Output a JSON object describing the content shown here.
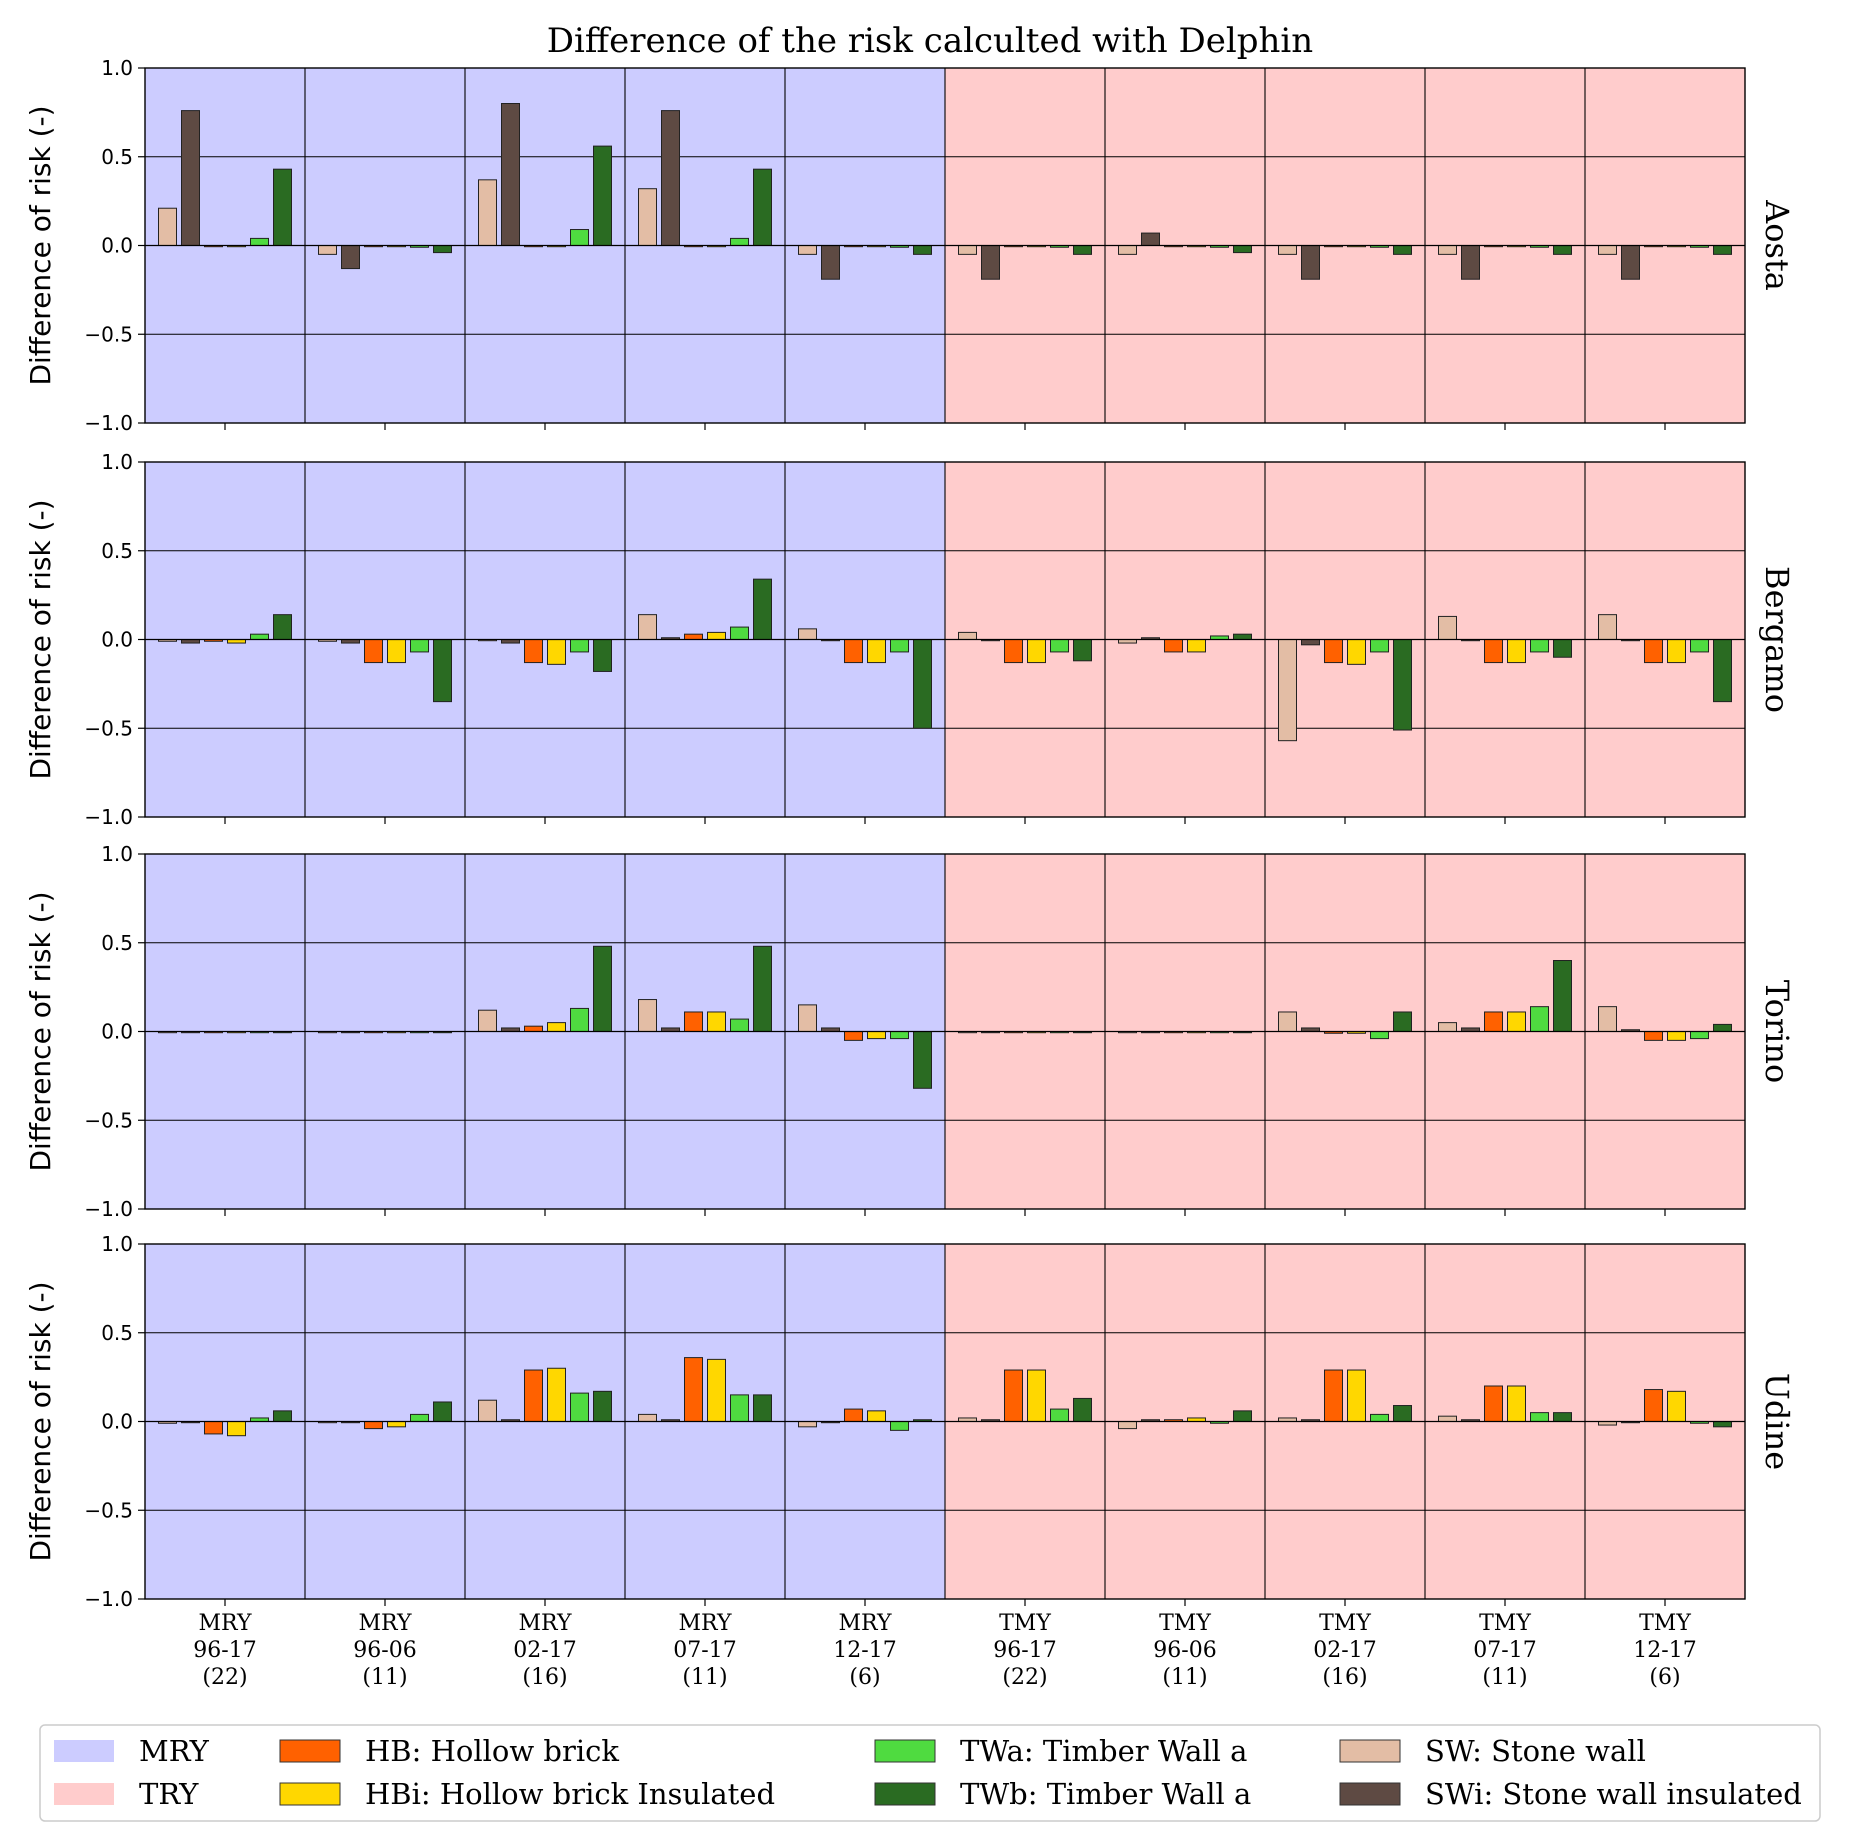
{
  "chart_data": {
    "type": "bar",
    "title": "Difference of the risk calculted with Delphin",
    "ylabel": "Difference of risk (-)",
    "ylim": [
      -1.0,
      1.0
    ],
    "yticks": [
      "−1.0",
      "−0.5",
      "0.0",
      "0.5",
      "1.0"
    ],
    "grid": true,
    "legend_position": "bottom",
    "categories": [
      {
        "type": "MRY",
        "years": "96-17",
        "count": "(22)"
      },
      {
        "type": "MRY",
        "years": "96-06",
        "count": "(11)"
      },
      {
        "type": "MRY",
        "years": "02-17",
        "count": "(16)"
      },
      {
        "type": "MRY",
        "years": "07-17",
        "count": "(11)"
      },
      {
        "type": "MRY",
        "years": "12-17",
        "count": "(6)"
      },
      {
        "type": "TMY",
        "years": "96-17",
        "count": "(22)"
      },
      {
        "type": "TMY",
        "years": "96-06",
        "count": "(11)"
      },
      {
        "type": "TMY",
        "years": "02-17",
        "count": "(16)"
      },
      {
        "type": "TMY",
        "years": "07-17",
        "count": "(11)"
      },
      {
        "type": "TMY",
        "years": "12-17",
        "count": "(6)"
      }
    ],
    "backgrounds": [
      {
        "label": "MRY",
        "color": "#ccccff"
      },
      {
        "label": "TRY",
        "color": "#ffcccc"
      }
    ],
    "series": [
      {
        "name": "SW: Stone wall",
        "color": "#e3bda5"
      },
      {
        "name": "SWi: Stone wall insulated",
        "color": "#5e4a43"
      },
      {
        "name": "HB: Hollow brick",
        "color": "#ff6100"
      },
      {
        "name": "HBi: Hollow brick Insulated",
        "color": "#ffd700"
      },
      {
        "name": "TWa: Timber Wall a",
        "color": "#4fdb40"
      },
      {
        "name": "TWb: Timber Wall a",
        "color": "#2a6b22"
      }
    ],
    "legend_entries": [
      {
        "name": "MRY",
        "color": "#ccccff",
        "col": 0,
        "row": 0,
        "border": false
      },
      {
        "name": "TRY",
        "color": "#ffcccc",
        "col": 0,
        "row": 1,
        "border": false
      },
      {
        "name": "HB: Hollow brick",
        "color": "#ff6100",
        "col": 1,
        "row": 0,
        "border": true
      },
      {
        "name": "HBi: Hollow brick Insulated",
        "color": "#ffd700",
        "col": 1,
        "row": 1,
        "border": true
      },
      {
        "name": "TWa: Timber Wall a",
        "color": "#4fdb40",
        "col": 2,
        "row": 0,
        "border": true
      },
      {
        "name": "TWb: Timber Wall a",
        "color": "#2a6b22",
        "col": 2,
        "row": 1,
        "border": true
      },
      {
        "name": "SW: Stone wall",
        "color": "#e3bda5",
        "col": 3,
        "row": 0,
        "border": true
      },
      {
        "name": "SWi: Stone wall insulated",
        "color": "#5e4a43",
        "col": 3,
        "row": 1,
        "border": true
      }
    ],
    "panels": [
      {
        "city": "Aosta",
        "values": [
          [
            0.21,
            0.76,
            0.0,
            0.0,
            0.04,
            0.43
          ],
          [
            -0.05,
            -0.13,
            0.0,
            0.0,
            -0.01,
            -0.04
          ],
          [
            0.37,
            0.8,
            0.0,
            0.0,
            0.09,
            0.56
          ],
          [
            0.32,
            0.76,
            0.0,
            0.0,
            0.04,
            0.43
          ],
          [
            -0.05,
            -0.19,
            0.0,
            0.0,
            -0.01,
            -0.05
          ],
          [
            -0.05,
            -0.19,
            0.0,
            0.0,
            -0.01,
            -0.05
          ],
          [
            -0.05,
            0.07,
            0.0,
            0.0,
            -0.01,
            -0.04
          ],
          [
            -0.05,
            -0.19,
            0.0,
            0.0,
            -0.01,
            -0.05
          ],
          [
            -0.05,
            -0.19,
            0.0,
            0.0,
            -0.01,
            -0.05
          ],
          [
            -0.05,
            -0.19,
            0.0,
            0.0,
            -0.01,
            -0.05
          ]
        ]
      },
      {
        "city": "Bergamo",
        "values": [
          [
            -0.01,
            -0.02,
            -0.01,
            -0.02,
            0.03,
            0.14
          ],
          [
            -0.01,
            -0.02,
            -0.13,
            -0.13,
            -0.07,
            -0.35
          ],
          [
            0.0,
            -0.02,
            -0.13,
            -0.14,
            -0.07,
            -0.18
          ],
          [
            0.14,
            0.01,
            0.03,
            0.04,
            0.07,
            0.34
          ],
          [
            0.06,
            0.0,
            -0.13,
            -0.13,
            -0.07,
            -0.5
          ],
          [
            0.04,
            0.0,
            -0.13,
            -0.13,
            -0.07,
            -0.12
          ],
          [
            -0.02,
            0.01,
            -0.07,
            -0.07,
            0.02,
            0.03
          ],
          [
            -0.57,
            -0.03,
            -0.13,
            -0.14,
            -0.07,
            -0.51
          ],
          [
            0.13,
            0.0,
            -0.13,
            -0.13,
            -0.07,
            -0.1
          ],
          [
            0.14,
            0.0,
            -0.13,
            -0.13,
            -0.07,
            -0.35
          ]
        ]
      },
      {
        "city": "Torino",
        "values": [
          [
            0.0,
            0.0,
            0.0,
            0.0,
            0.0,
            0.0
          ],
          [
            0.0,
            0.0,
            0.0,
            0.0,
            0.0,
            0.0
          ],
          [
            0.12,
            0.02,
            0.03,
            0.05,
            0.13,
            0.48
          ],
          [
            0.18,
            0.02,
            0.11,
            0.11,
            0.07,
            0.48
          ],
          [
            0.15,
            0.02,
            -0.05,
            -0.04,
            -0.04,
            -0.32
          ],
          [
            0.0,
            0.0,
            0.0,
            0.0,
            0.0,
            0.0
          ],
          [
            0.0,
            0.0,
            0.0,
            0.0,
            0.0,
            0.0
          ],
          [
            0.11,
            0.02,
            -0.01,
            -0.01,
            -0.04,
            0.11
          ],
          [
            0.05,
            0.02,
            0.11,
            0.11,
            0.14,
            0.4
          ],
          [
            0.14,
            0.01,
            -0.05,
            -0.05,
            -0.04,
            0.04
          ]
        ]
      },
      {
        "city": "Udine",
        "values": [
          [
            -0.01,
            0.0,
            -0.07,
            -0.08,
            0.02,
            0.06
          ],
          [
            0.0,
            0.0,
            -0.04,
            -0.03,
            0.04,
            0.11
          ],
          [
            0.12,
            0.01,
            0.29,
            0.3,
            0.16,
            0.17
          ],
          [
            0.04,
            0.01,
            0.36,
            0.35,
            0.15,
            0.15
          ],
          [
            -0.03,
            0.0,
            0.07,
            0.06,
            -0.05,
            0.01
          ],
          [
            0.02,
            0.01,
            0.29,
            0.29,
            0.07,
            0.13
          ],
          [
            -0.04,
            0.01,
            0.01,
            0.02,
            -0.01,
            0.06
          ],
          [
            0.02,
            0.01,
            0.29,
            0.29,
            0.04,
            0.09
          ],
          [
            0.03,
            0.01,
            0.2,
            0.2,
            0.05,
            0.05
          ],
          [
            -0.02,
            0.0,
            0.18,
            0.17,
            -0.01,
            -0.03
          ]
        ]
      }
    ]
  }
}
